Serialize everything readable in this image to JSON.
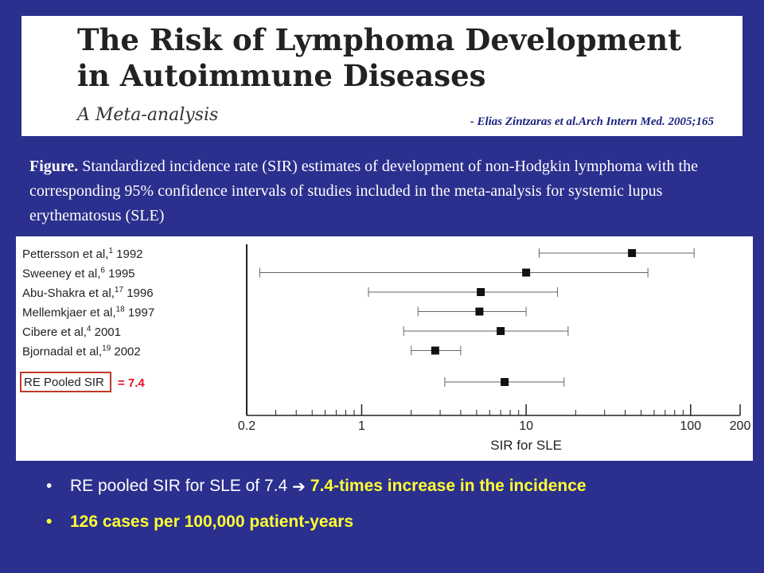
{
  "header": {
    "title": "The Risk of Lymphoma Development\nin Autoimmune Diseases",
    "subtitle": "A Meta-analysis",
    "citation": "- Elias Zintzaras et al.Arch Intern Med. 2005;165"
  },
  "caption": {
    "label": "Figure.",
    "text": "Standardized incidence rate (SIR) estimates of development of non-Hodgkin lymphoma with the corresponding 95% confidence intervals of studies included in the meta-analysis for systemic lupus erythematosus (SLE)"
  },
  "chart_data": {
    "type": "forest",
    "xlabel": "SIR for SLE",
    "xscale": "log",
    "xlim": [
      0.2,
      200
    ],
    "major_ticks": [
      0.2,
      1,
      10,
      100,
      200
    ],
    "studies": [
      {
        "label": "Pettersson et al,",
        "ref": "1",
        "year": "1992",
        "sir": 44,
        "lo": 12,
        "hi": 105
      },
      {
        "label": "Sweeney et al,",
        "ref": "6",
        "year": "1995",
        "sir": 10,
        "lo": 0.24,
        "hi": 55
      },
      {
        "label": "Abu-Shakra et al,",
        "ref": "17",
        "year": "1996",
        "sir": 5.3,
        "lo": 1.1,
        "hi": 15.5
      },
      {
        "label": "Mellemkjaer et al,",
        "ref": "18",
        "year": "1997",
        "sir": 5.2,
        "lo": 2.2,
        "hi": 10
      },
      {
        "label": "Cibere et al,",
        "ref": "4",
        "year": "2001",
        "sir": 7,
        "lo": 1.8,
        "hi": 18
      },
      {
        "label": "Bjornadal et al,",
        "ref": "19",
        "year": "2002",
        "sir": 2.8,
        "lo": 2.0,
        "hi": 4.0
      }
    ],
    "pooled": {
      "label": "RE Pooled SIR",
      "value_label": "= 7.4",
      "sir": 7.4,
      "lo": 3.2,
      "hi": 17
    }
  },
  "bullets": [
    {
      "text": "RE pooled SIR for SLE of 7.4",
      "highlight": "7.4-times increase in the incidence"
    },
    {
      "text": "",
      "highlight": "126 cases per 100,000 patient-years"
    }
  ],
  "colors": {
    "background": "#2b2f8e",
    "highlight": "#ffff33",
    "pooled_box": "#c0392b"
  },
  "icons": {
    "bullet": "bullet-dot",
    "arrow": "right-arrow-icon"
  }
}
